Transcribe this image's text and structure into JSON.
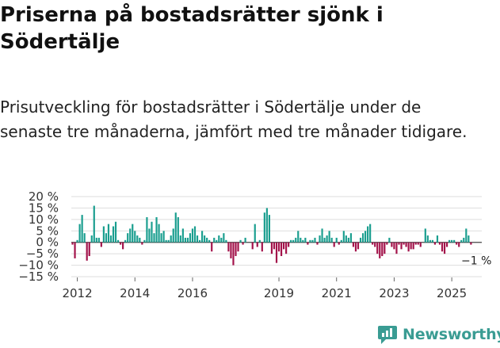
{
  "title": "Priserna på bostadsrätter sjönk i Södertälje",
  "subtitle": "Prisutveckling för bostadsrätter i Södertälje under de senaste tre månaderna, jämfört med tre månader tidigare.",
  "brand": "Newsworthy",
  "colors": {
    "positive": "#1a9e8f",
    "negative": "#a3124a",
    "grid": "#dddddd",
    "zero": "#444444",
    "brand": "#3a9c93"
  },
  "chart_data": {
    "type": "bar",
    "title": "Priserna på bostadsrätter sjönk i Södertälje",
    "xlabel": "",
    "ylabel": "",
    "unit": "%",
    "ylim": [
      -15,
      20
    ],
    "yticks": [
      -15,
      -10,
      -5,
      0,
      5,
      10,
      15,
      20
    ],
    "ytick_labels": [
      "−15 %",
      "−10 %",
      "−5 %",
      "0 %",
      "5 %",
      "10 %",
      "15 %",
      "20 %"
    ],
    "xticks": [
      2012,
      2014,
      2016,
      2019,
      2021,
      2023,
      2025
    ],
    "grid": true,
    "start": {
      "year": 2011,
      "month": 11
    },
    "values": [
      -1,
      -7,
      1,
      8,
      12,
      4,
      -8,
      -6,
      3,
      16,
      2,
      2,
      -2,
      7,
      4,
      8,
      3,
      7,
      9,
      1,
      -1,
      -3,
      1,
      4,
      6,
      8,
      5,
      3,
      2,
      -1,
      1,
      11,
      6,
      9,
      4,
      11,
      8,
      4,
      5,
      1,
      1,
      3,
      6,
      13,
      11,
      3,
      6,
      2,
      2,
      4,
      6,
      7,
      3,
      1,
      5,
      3,
      2,
      1,
      -4,
      2,
      1,
      3,
      2,
      4,
      1,
      -4,
      -7,
      -10,
      -6,
      -4,
      1,
      -1,
      2,
      0,
      0,
      -3,
      8,
      -2,
      1,
      -4,
      13,
      15,
      12,
      -5,
      -3,
      -9,
      -4,
      -6,
      -3,
      -5,
      -2,
      1,
      1,
      2,
      5,
      2,
      1,
      2,
      -1,
      1,
      1,
      2,
      -1,
      3,
      6,
      2,
      3,
      5,
      2,
      -2,
      2,
      -1,
      1,
      5,
      3,
      2,
      4,
      -2,
      -4,
      -3,
      2,
      4,
      5,
      7,
      8,
      -1,
      -2,
      -5,
      -7,
      -6,
      -5,
      -1,
      2,
      -2,
      -3,
      -5,
      -1,
      -3,
      -1,
      -2,
      -4,
      -3,
      -3,
      -1,
      -1,
      -2,
      0,
      6,
      3,
      1,
      1,
      -1,
      3,
      -1,
      -4,
      -5,
      -2,
      1,
      1,
      1,
      -1,
      -2,
      1,
      2,
      6,
      3,
      -1,
      0,
      0
    ],
    "annotation": {
      "text": "−1 %",
      "value": -1
    }
  }
}
